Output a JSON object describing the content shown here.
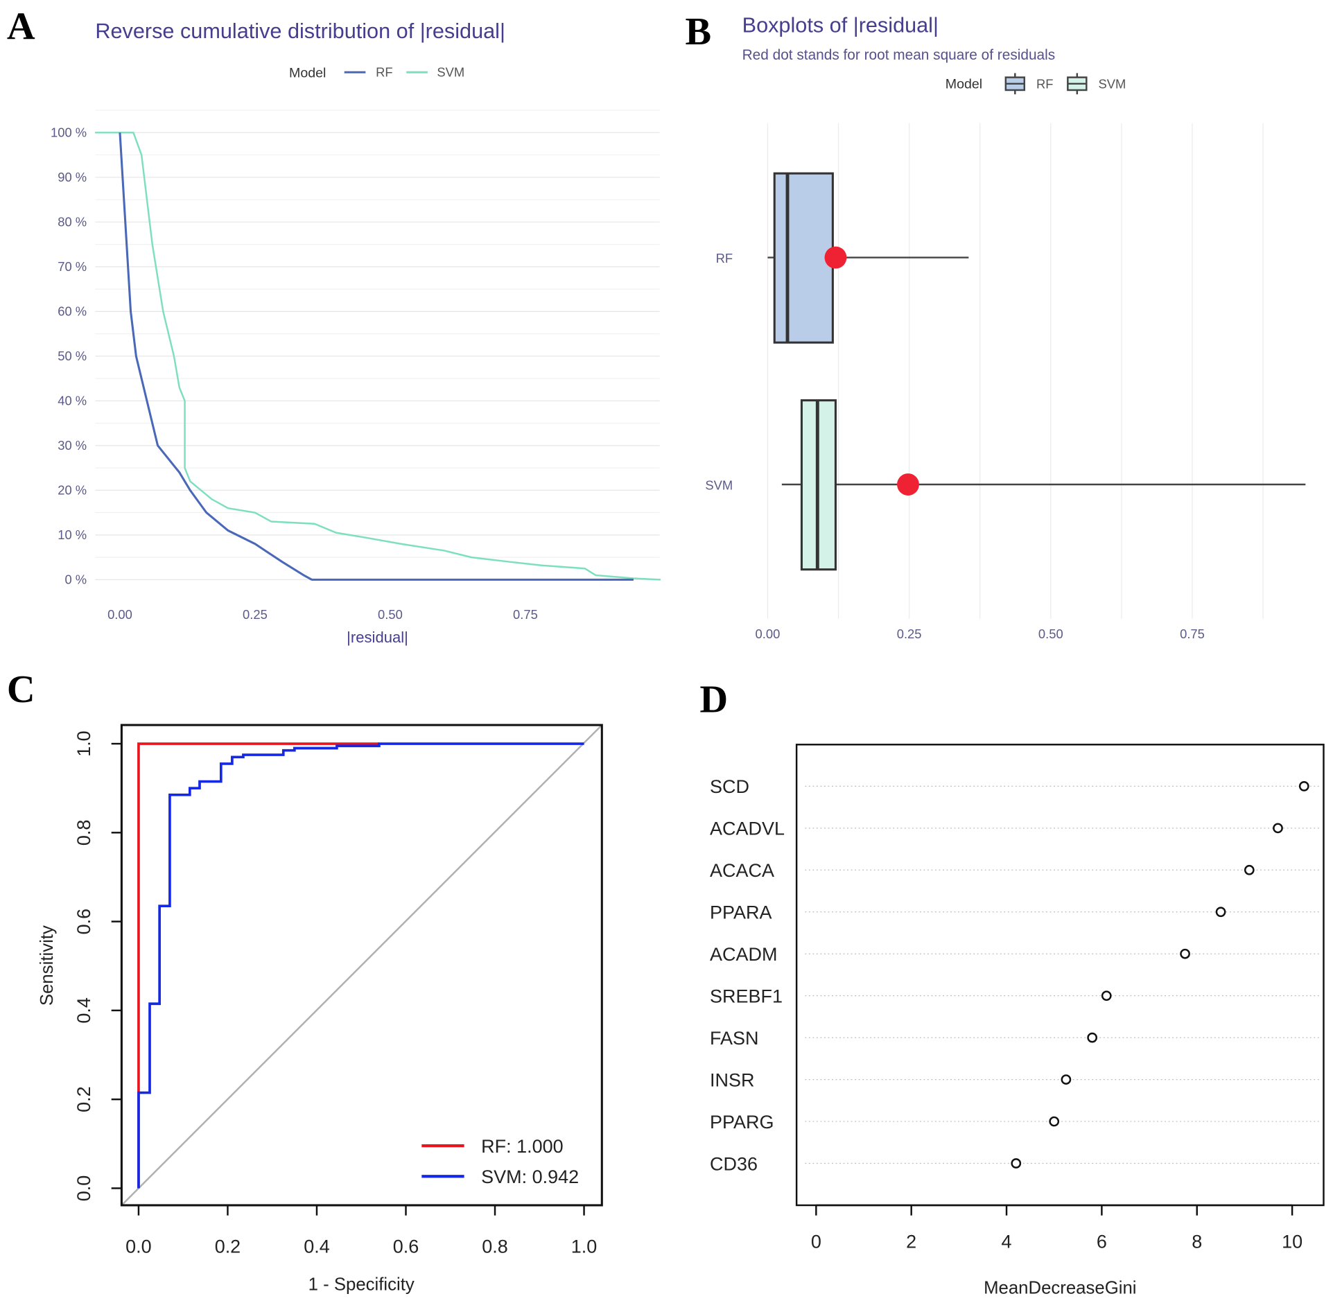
{
  "colors": {
    "rf_line": "#4a68b8",
    "svm_line": "#7ddfc0",
    "rf_box": "#b9cde8",
    "svm_box": "#d5f2e8",
    "rms_dot": "#ee2233",
    "roc_rf": "#e8141e",
    "roc_svm": "#1428e6",
    "diag": "#b0b0b0"
  },
  "chart_data": [
    {
      "panel": "A",
      "type": "line",
      "title": "Reverse cumulative distribution of |residual|",
      "xlabel": "|residual|",
      "ylabel": "",
      "legend_title": "Model",
      "legend_position": "top",
      "xticks": [
        "0.00",
        "0.25",
        "0.50",
        "0.75"
      ],
      "xtick_values": [
        0,
        0.25,
        0.5,
        0.75
      ],
      "yticks": [
        "0 %",
        "10 %",
        "20 %",
        "30 %",
        "40 %",
        "50 %",
        "60 %",
        "70 %",
        "80 %",
        "90 %",
        "100 %"
      ],
      "ytick_values": [
        0,
        10,
        20,
        30,
        40,
        50,
        60,
        70,
        80,
        90,
        100
      ],
      "xlim": [
        -0.046,
        1.0
      ],
      "ylim": [
        0,
        105
      ],
      "grid": true,
      "series": [
        {
          "name": "RF",
          "x": [
            0,
            0.005,
            0.01,
            0.015,
            0.02,
            0.03,
            0.05,
            0.07,
            0.11,
            0.13,
            0.16,
            0.2,
            0.25,
            0.3,
            0.34,
            0.355,
            0.95
          ],
          "y": [
            100,
            90,
            80,
            70,
            60,
            50,
            40,
            30,
            24,
            20,
            15,
            11,
            8,
            4,
            1,
            0,
            0
          ]
        },
        {
          "name": "SVM",
          "x": [
            -0.046,
            0.025,
            0.04,
            0.05,
            0.06,
            0.08,
            0.1,
            0.11,
            0.12,
            0.12,
            0.13,
            0.17,
            0.2,
            0.25,
            0.28,
            0.36,
            0.4,
            0.45,
            0.52,
            0.6,
            0.65,
            0.72,
            0.78,
            0.86,
            0.88,
            0.95,
            1.0
          ],
          "y": [
            100,
            100,
            95,
            85,
            75,
            60,
            50,
            43,
            40,
            25,
            22,
            18,
            16,
            15,
            13,
            12.5,
            10.5,
            9.5,
            8,
            6.5,
            5,
            4,
            3.2,
            2.5,
            1,
            0.3,
            0
          ]
        }
      ]
    },
    {
      "panel": "B",
      "type": "box",
      "title": "Boxplots of |residual|",
      "subtitle": "Red dot stands for root mean square of residuals",
      "legend_title": "Model",
      "legend_position": "top",
      "xticks": [
        "0.00",
        "0.25",
        "0.50",
        "0.75"
      ],
      "xtick_values": [
        0,
        0.25,
        0.5,
        0.75
      ],
      "xlim": [
        0,
        0.95
      ],
      "categories": [
        "RF",
        "SVM"
      ],
      "boxes": [
        {
          "name": "RF",
          "min": 0,
          "q1": 0.012,
          "median": 0.035,
          "q3": 0.115,
          "max": 0.355,
          "rms": 0.12
        },
        {
          "name": "SVM",
          "min": 0.025,
          "q1": 0.06,
          "median": 0.088,
          "q3": 0.12,
          "max": 0.95,
          "rms": 0.248
        }
      ]
    },
    {
      "panel": "C",
      "type": "line",
      "title": "",
      "xlabel": "1 - Specificity",
      "ylabel": "Sensitivity",
      "xticks": [
        "0.0",
        "0.2",
        "0.4",
        "0.6",
        "0.8",
        "1.0"
      ],
      "yticks": [
        "0.0",
        "0.2",
        "0.4",
        "0.6",
        "0.8",
        "1.0"
      ],
      "xlim": [
        0,
        1
      ],
      "ylim": [
        0,
        1
      ],
      "legend_position": "bottom-right",
      "series": [
        {
          "name": "RF",
          "label": "RF: 1.000",
          "auc": 1.0,
          "x": [
            0,
            0,
            0.54
          ],
          "y": [
            0,
            1,
            1
          ]
        },
        {
          "name": "SVM",
          "label": "SVM: 0.942",
          "auc": 0.942,
          "x": [
            0,
            0,
            0.025,
            0.025,
            0.047,
            0.047,
            0.07,
            0.07,
            0.115,
            0.115,
            0.137,
            0.137,
            0.185,
            0.185,
            0.21,
            0.21,
            0.235,
            0.235,
            0.325,
            0.325,
            0.35,
            0.35,
            0.445,
            0.445,
            0.54,
            0.54,
            1
          ],
          "y": [
            0,
            0.215,
            0.215,
            0.415,
            0.415,
            0.635,
            0.635,
            0.885,
            0.885,
            0.9,
            0.9,
            0.915,
            0.915,
            0.955,
            0.955,
            0.97,
            0.97,
            0.975,
            0.975,
            0.985,
            0.985,
            0.99,
            0.99,
            0.995,
            0.995,
            1,
            1
          ]
        }
      ]
    },
    {
      "panel": "D",
      "type": "scatter",
      "title": "",
      "xlabel": "MeanDecreaseGini",
      "xticks": [
        "0",
        "2",
        "4",
        "6",
        "8",
        "10"
      ],
      "xtick_values": [
        0,
        2,
        4,
        6,
        8,
        10
      ],
      "xlim": [
        -0.4,
        10.7
      ],
      "categories": [
        "SCD",
        "ACADVL",
        "ACACA",
        "PPARA",
        "ACADM",
        "SREBF1",
        "FASN",
        "INSR",
        "PPARG",
        "CD36"
      ],
      "values": [
        10.25,
        9.7,
        9.1,
        8.5,
        7.75,
        6.1,
        5.8,
        5.25,
        5.0,
        4.2
      ]
    }
  ],
  "panel_labels": {
    "a": "A",
    "b": "B",
    "c": "C",
    "d": "D"
  }
}
